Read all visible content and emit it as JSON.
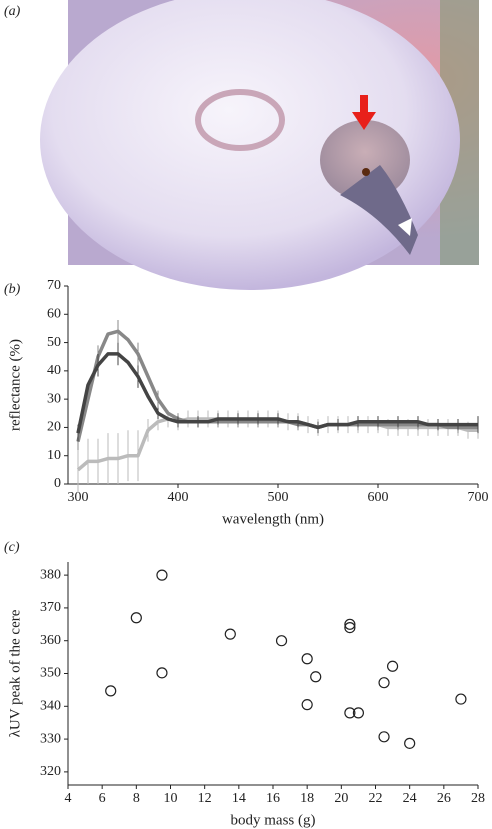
{
  "photo": {
    "label": "(a)"
  },
  "chart_data": [
    {
      "type": "line",
      "panel_label": "(b)",
      "xlabel": "wavelength (nm)",
      "ylabel": "reflectance (%)",
      "x": [
        300,
        310,
        320,
        330,
        340,
        350,
        360,
        370,
        380,
        390,
        400,
        410,
        420,
        430,
        440,
        450,
        460,
        470,
        480,
        490,
        500,
        510,
        520,
        530,
        540,
        550,
        560,
        570,
        580,
        590,
        600,
        610,
        620,
        630,
        640,
        650,
        660,
        670,
        680,
        690,
        700
      ],
      "xlim": [
        290,
        700
      ],
      "xticks": [
        300,
        400,
        500,
        600,
        700
      ],
      "ylim": [
        0,
        70
      ],
      "yticks": [
        0,
        10,
        20,
        30,
        40,
        50,
        60,
        70
      ],
      "series": [
        {
          "color": "#bbbbbb",
          "values": [
            5,
            8,
            8,
            9,
            9,
            10,
            10,
            19,
            22,
            23,
            22,
            23,
            23,
            23,
            23,
            23,
            23,
            23,
            23,
            23,
            23,
            22,
            22,
            21,
            20,
            21,
            21,
            21,
            21,
            21,
            21,
            20,
            20,
            20,
            20,
            20,
            20,
            20,
            20,
            19,
            19
          ],
          "errors": [
            8,
            8,
            8,
            9,
            9,
            9,
            9,
            4,
            3,
            3,
            3,
            3,
            3,
            3,
            3,
            3,
            3,
            3,
            3,
            3,
            3,
            3,
            3,
            3,
            3,
            3,
            3,
            3,
            3,
            3,
            3,
            3,
            3,
            3,
            3,
            3,
            3,
            3,
            3,
            3,
            3
          ]
        },
        {
          "color": "#888888",
          "values": [
            15,
            30,
            45,
            53,
            54,
            51,
            46,
            38,
            30,
            25,
            23,
            22,
            22,
            22,
            22,
            22,
            22,
            22,
            22,
            22,
            22,
            22,
            21,
            21,
            20,
            21,
            21,
            21,
            21,
            21,
            21,
            21,
            21,
            21,
            21,
            21,
            21,
            20,
            20,
            20,
            20
          ],
          "errors": [
            3,
            3,
            4,
            4,
            4,
            4,
            4,
            3,
            3,
            2,
            2,
            2,
            2,
            2,
            2,
            2,
            2,
            2,
            2,
            2,
            2,
            2,
            2,
            2,
            2,
            2,
            2,
            2,
            2,
            2,
            2,
            2,
            2,
            2,
            2,
            2,
            2,
            2,
            2,
            2,
            2
          ]
        },
        {
          "color": "#444444",
          "values": [
            18,
            35,
            42,
            46,
            46,
            43,
            38,
            31,
            25,
            23,
            22,
            22,
            22,
            22,
            23,
            23,
            23,
            23,
            23,
            23,
            23,
            22,
            22,
            21,
            20,
            21,
            21,
            21,
            22,
            22,
            22,
            22,
            22,
            22,
            22,
            21,
            21,
            21,
            21,
            21,
            21
          ],
          "errors": [
            3,
            4,
            4,
            4,
            4,
            4,
            4,
            3,
            2,
            2,
            2,
            2,
            2,
            2,
            2,
            2,
            2,
            2,
            2,
            2,
            2,
            2,
            2,
            2,
            2,
            2,
            2,
            2,
            2,
            2,
            2,
            2,
            2,
            2,
            2,
            2,
            2,
            2,
            2,
            2,
            3
          ]
        }
      ]
    },
    {
      "type": "scatter",
      "panel_label": "(c)",
      "xlabel": "body mass (g)",
      "ylabel": "λUV peak of the cere",
      "x": [
        6.5,
        8,
        9.5,
        9.5,
        13.5,
        16.5,
        18,
        18,
        18.5,
        20.5,
        20.5,
        20.5,
        21,
        22.5,
        23,
        22.5,
        24,
        27
      ],
      "values": [
        344.7,
        367,
        380,
        350.2,
        362,
        360,
        354.5,
        340.5,
        349,
        365,
        364,
        338,
        338,
        347.2,
        352.2,
        330.7,
        328.7,
        342.2
      ],
      "xlim": [
        4,
        28
      ],
      "xticks": [
        4,
        6,
        8,
        10,
        12,
        14,
        16,
        18,
        20,
        22,
        24,
        26,
        28
      ],
      "ylim": [
        316,
        384
      ],
      "yticks": [
        320,
        330,
        340,
        350,
        360,
        370,
        380
      ]
    }
  ]
}
